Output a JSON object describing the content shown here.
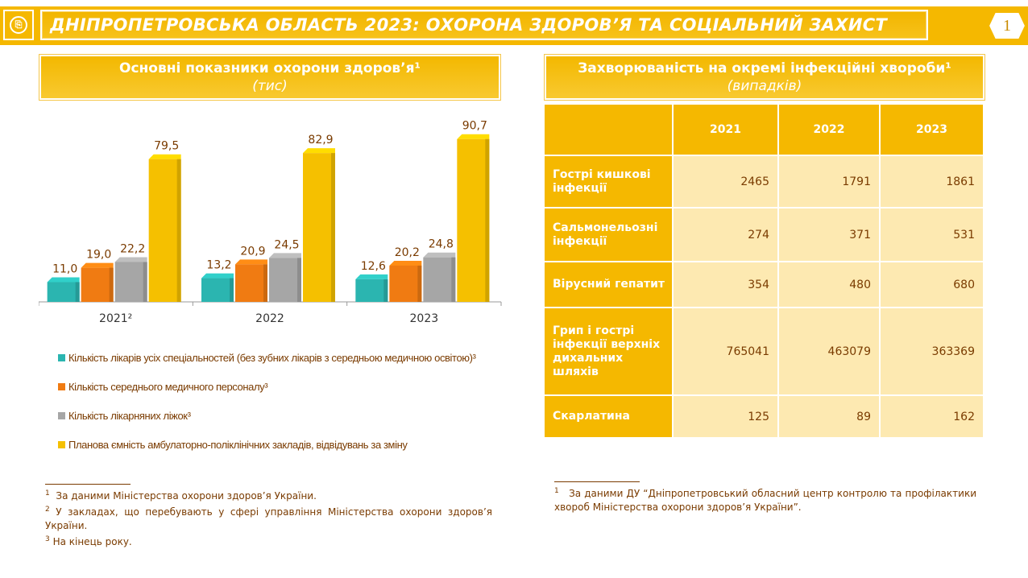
{
  "header": {
    "title": "ДНІПРОПЕТРОВСЬКА ОБЛАСТЬ 2023: ОХОРОНА ЗДОРОВ’Я ТА СОЦІАЛЬНИЙ ЗАХИСТ",
    "page_number": "1",
    "logo_icon": "document-icon"
  },
  "left_section": {
    "title": "Основні показники охорони здоров’я¹",
    "subtitle": "(тис)"
  },
  "right_section": {
    "title": "Захворюваність на окремі інфекційні хвороби¹",
    "subtitle": "(випадків)"
  },
  "chart_data": {
    "type": "bar",
    "categories": [
      "2021²",
      "2022",
      "2023"
    ],
    "series": [
      {
        "name": "Кількість лікарів усіх спеціальностей (без зубних лікарів з середньою медичною освітою)³",
        "color": "#2bb5b0",
        "values": [
          11.0,
          13.2,
          12.6
        ],
        "labels": [
          "11,0",
          "13,2",
          "12,6"
        ]
      },
      {
        "name": "Кількість середнього медичного персоналу³",
        "color": "#f07b12",
        "values": [
          19.0,
          20.9,
          20.2
        ],
        "labels": [
          "19,0",
          "20,9",
          "20,2"
        ]
      },
      {
        "name": "Кількість лікарняних ліжок³",
        "color": "#a6a6a6",
        "values": [
          22.2,
          24.5,
          24.8
        ],
        "labels": [
          "22,2",
          "24,5",
          "24,8"
        ]
      },
      {
        "name": "Планова ємність амбулаторно-поліклінічних закладів, відвідувань за зміну",
        "color": "#f5c000",
        "values": [
          79.5,
          82.9,
          90.7
        ],
        "labels": [
          "79,5",
          "82,9",
          "90,7"
        ]
      }
    ],
    "ylim": [
      0,
      100
    ],
    "grid": false,
    "legend_position": "bottom"
  },
  "left_footnotes": [
    {
      "mark": "1",
      "text": "За даними Міністерства охорони здоров’я України."
    },
    {
      "mark": "2",
      "text": "У закладах, що перебувають у сфері управління Міністерства охорони здоров’я України."
    },
    {
      "mark": "3",
      "text": "На кінець року."
    }
  ],
  "table": {
    "columns": [
      "2021",
      "2022",
      "2023"
    ],
    "rows": [
      {
        "label": "Гострі кишкові інфекції",
        "values": [
          "2465",
          "1791",
          "1861"
        ]
      },
      {
        "label": "Сальмонельозні інфекції",
        "values": [
          "274",
          "371",
          "531"
        ]
      },
      {
        "label": "Вірусний гепатит",
        "values": [
          "354",
          "480",
          "680"
        ]
      },
      {
        "label": "Грип і гострі інфекції верхніх дихальних шляхів",
        "values": [
          "765041",
          "463079",
          "363369"
        ]
      },
      {
        "label": "Скарлатина",
        "values": [
          "125",
          "89",
          "162"
        ]
      }
    ]
  },
  "right_footnote": {
    "mark": "1",
    "text": "За даними ДУ “Дніпропетровський обласний центр контролю та профілактики хвороб Міністерства охорони здоров’я України”."
  }
}
